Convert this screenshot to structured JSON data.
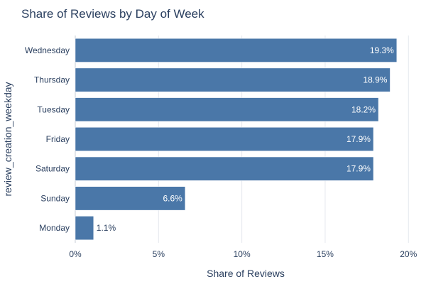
{
  "chart_data": {
    "type": "bar",
    "orientation": "horizontal",
    "title": "Share of Reviews by Day of Week",
    "xlabel": "Share of Reviews",
    "ylabel": "review_creation_weekday",
    "categories": [
      "Wednesday",
      "Thursday",
      "Tuesday",
      "Friday",
      "Saturday",
      "Sunday",
      "Monday"
    ],
    "values": [
      19.3,
      18.9,
      18.2,
      17.9,
      17.9,
      6.6,
      1.1
    ],
    "value_labels": [
      "19.3%",
      "18.9%",
      "18.2%",
      "17.9%",
      "17.9%",
      "6.6%",
      "1.1%"
    ],
    "xlim": [
      0,
      20.5
    ],
    "xticks": [
      0,
      5,
      10,
      15,
      20
    ],
    "xtick_labels": [
      "0%",
      "5%",
      "10%",
      "15%",
      "20%"
    ],
    "grid": true,
    "colors": {
      "bar": "#4a77a8",
      "bar_edge": "#ffffff",
      "grid": "#e5e8ee",
      "text": "#2a3f5f",
      "label_inside": "#ffffff"
    }
  }
}
